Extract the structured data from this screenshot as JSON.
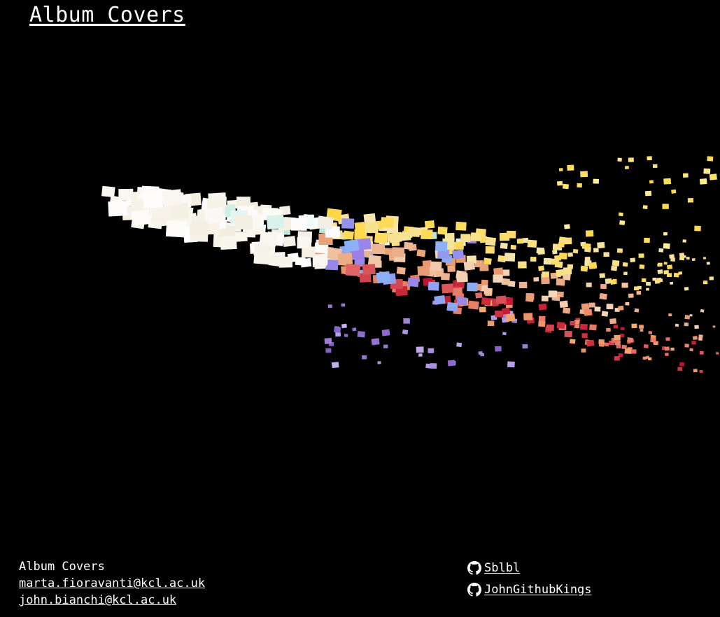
{
  "header": {
    "title": "Album Covers"
  },
  "footer": {
    "site_name": "Album Covers",
    "emails": [
      "marta.fioravanti@kcl.ac.uk",
      "john.bianchi@kcl.ac.uk"
    ],
    "github": [
      {
        "label": " Sblbl",
        "icon": "github-icon"
      },
      {
        "label": " JohnGithubKings",
        "icon": "github-icon"
      }
    ]
  },
  "visualization": {
    "kind": "3d-color-scatter",
    "colors": [
      "#ffffff",
      "#f5f0e6",
      "#fff6b0",
      "#ffd86b",
      "#f6b26b",
      "#e06666",
      "#cc3333",
      "#c2185b",
      "#8e24aa",
      "#7e57c2",
      "#6fa8dc",
      "#93c47d",
      "#76d7c4",
      "#f4cccc"
    ]
  }
}
